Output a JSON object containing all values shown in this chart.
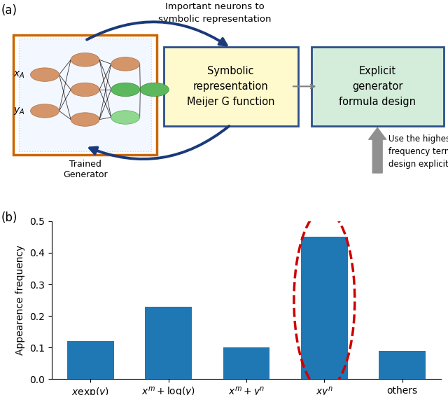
{
  "fig_width": 6.4,
  "fig_height": 5.64,
  "dpi": 100,
  "panel_a_label": "(a)",
  "panel_b_label": "(b)",
  "bar_categories": [
    "$x\\exp(y)$",
    "$x^m+\\log(y)$",
    "$x^m+y^n$",
    "$xy^n$",
    "others"
  ],
  "bar_values": [
    0.12,
    0.23,
    0.1,
    0.45,
    0.09
  ],
  "bar_color": "#1f77b4",
  "ylim": [
    0,
    0.5
  ],
  "yticks": [
    0,
    0.1,
    0.2,
    0.3,
    0.4,
    0.5
  ],
  "ylabel": "Appearence frequency",
  "box_symbolic_text": "Symbolic\nrepresentation\nMeijer G function",
  "box_symbolic_facecolor": "#fffacd",
  "box_symbolic_edgecolor": "#2c4f8a",
  "box_explicit_text": "Explicit\ngenerator\nformula design",
  "box_explicit_facecolor": "#d4edda",
  "box_explicit_edgecolor": "#2c4f8a",
  "box_generator_edgecolor": "#cc6600",
  "arrow_color": "#1a3a7a",
  "gray_arrow_color": "#909090",
  "red_ellipse_color": "#cc0000",
  "text_important": "Important neurons to\nsymbolic representation",
  "text_highest_freq": "Use the highest\nfrequency term to\ndesign explicit formula",
  "text_trained": "Trained\nGenerator",
  "label_xA": "$x_A$",
  "label_yA": "$y_A$"
}
